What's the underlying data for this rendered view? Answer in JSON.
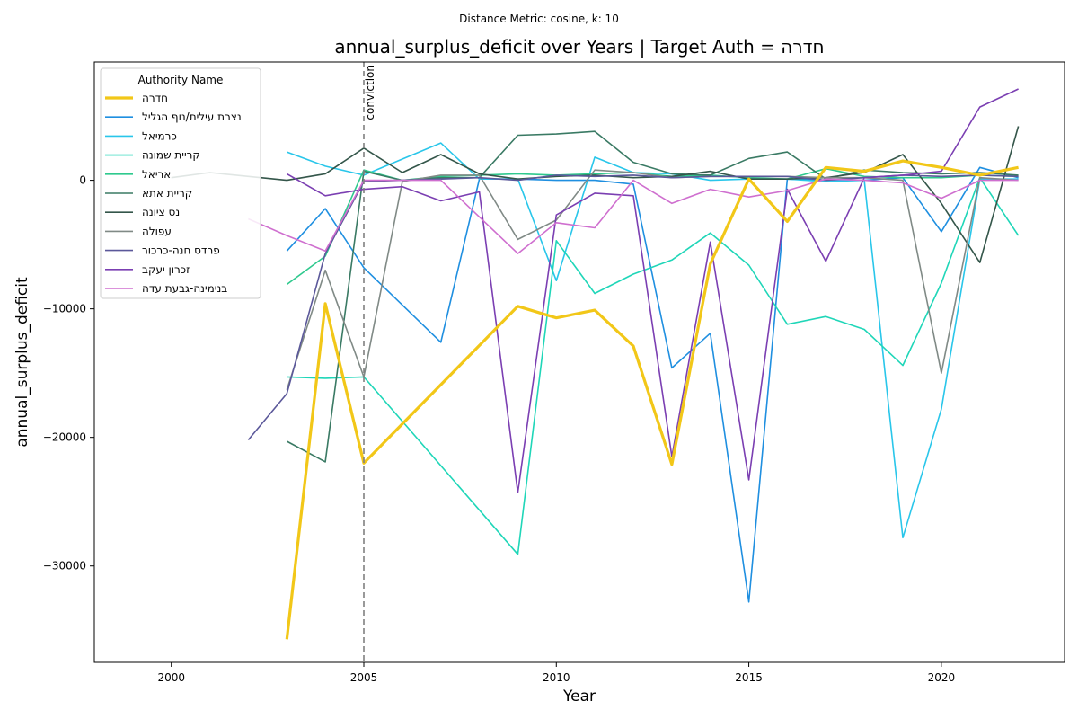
{
  "suptitle": "Distance Metric: cosine, k: 10",
  "chart_data": {
    "type": "line",
    "title": "annual_surplus_deficit over Years | Target Auth = חדרה",
    "xlabel": "Year",
    "ylabel": "annual_surplus_deficit",
    "xlim": [
      1998,
      2023.2
    ],
    "ylim": [
      -37500,
      9200
    ],
    "xticks": [
      2000,
      2005,
      2010,
      2015,
      2020
    ],
    "yticks": [
      -30000,
      -20000,
      -10000,
      0
    ],
    "grid": false,
    "legend": {
      "title": "Authority Name",
      "position": "top-left"
    },
    "vline": {
      "x": 2005,
      "label": "conviction",
      "color": "#808080"
    },
    "series": [
      {
        "name": "חדרה",
        "color": "#f2c718",
        "width": 3.2,
        "target": true,
        "points": [
          [
            2003,
            -35700
          ],
          [
            2004,
            -9600
          ],
          [
            2005,
            -22000
          ],
          [
            2009,
            -9800
          ],
          [
            2010,
            -10700
          ],
          [
            2011,
            -10100
          ],
          [
            2012,
            -12900
          ],
          [
            2013,
            -22100
          ],
          [
            2014,
            -6500
          ],
          [
            2015,
            100
          ],
          [
            2016,
            -3200
          ],
          [
            2017,
            1000
          ],
          [
            2018,
            700
          ],
          [
            2019,
            1500
          ],
          [
            2020,
            1000
          ],
          [
            2021,
            400
          ],
          [
            2022,
            1000
          ]
        ]
      },
      {
        "name": "נצרת עילית/נוף הגליל",
        "color": "#1f8fe0",
        "width": 1.6,
        "points": [
          [
            2003,
            -5500
          ],
          [
            2004,
            -2200
          ],
          [
            2005,
            -6800
          ],
          [
            2007,
            -12600
          ],
          [
            2008,
            100
          ],
          [
            2009,
            100
          ],
          [
            2010,
            0
          ],
          [
            2011,
            0
          ],
          [
            2012,
            -300
          ],
          [
            2013,
            -14600
          ],
          [
            2014,
            -11900
          ],
          [
            2015,
            -32800
          ],
          [
            2016,
            100
          ],
          [
            2017,
            0
          ],
          [
            2018,
            0
          ],
          [
            2019,
            200
          ],
          [
            2020,
            -4000
          ],
          [
            2021,
            1000
          ],
          [
            2022,
            200
          ]
        ]
      },
      {
        "name": "כרמיאל",
        "color": "#29c6ea",
        "width": 1.6,
        "points": [
          [
            2003,
            2200
          ],
          [
            2004,
            1100
          ],
          [
            2005,
            400
          ],
          [
            2007,
            2900
          ],
          [
            2008,
            100
          ],
          [
            2009,
            100
          ],
          [
            2010,
            -7800
          ],
          [
            2011,
            1800
          ],
          [
            2012,
            600
          ],
          [
            2013,
            500
          ],
          [
            2014,
            0
          ],
          [
            2015,
            100
          ],
          [
            2016,
            100
          ],
          [
            2017,
            -100
          ],
          [
            2018,
            0
          ],
          [
            2019,
            -27800
          ],
          [
            2020,
            -17800
          ],
          [
            2021,
            100
          ],
          [
            2022,
            100
          ]
        ]
      },
      {
        "name": "קריית שמונה",
        "color": "#1fd6b8",
        "width": 1.6,
        "points": [
          [
            2003,
            -15300
          ],
          [
            2004,
            -15400
          ],
          [
            2005,
            -15300
          ],
          [
            2009,
            -29100
          ],
          [
            2010,
            -4700
          ],
          [
            2011,
            -8800
          ],
          [
            2012,
            -7300
          ],
          [
            2013,
            -6200
          ],
          [
            2014,
            -4100
          ],
          [
            2015,
            -6600
          ],
          [
            2016,
            -11200
          ],
          [
            2017,
            -10600
          ],
          [
            2018,
            -11600
          ],
          [
            2019,
            -14400
          ],
          [
            2020,
            -8000
          ],
          [
            2021,
            200
          ],
          [
            2022,
            -4300
          ]
        ]
      },
      {
        "name": "אריאל",
        "color": "#2fc98e",
        "width": 1.6,
        "points": [
          [
            2003,
            -8100
          ],
          [
            2004,
            -5900
          ],
          [
            2005,
            800
          ],
          [
            2006,
            0
          ],
          [
            2007,
            300
          ],
          [
            2008,
            400
          ],
          [
            2009,
            500
          ],
          [
            2010,
            400
          ],
          [
            2011,
            500
          ],
          [
            2012,
            600
          ],
          [
            2013,
            300
          ],
          [
            2014,
            400
          ],
          [
            2015,
            200
          ],
          [
            2016,
            100
          ],
          [
            2017,
            900
          ],
          [
            2018,
            300
          ],
          [
            2019,
            200
          ],
          [
            2020,
            200
          ],
          [
            2021,
            400
          ],
          [
            2022,
            300
          ]
        ]
      },
      {
        "name": "קריית אתא",
        "color": "#3a7a64",
        "width": 1.6,
        "points": [
          [
            2003,
            -20300
          ],
          [
            2004,
            -21900
          ],
          [
            2005,
            700
          ],
          [
            2006,
            0
          ],
          [
            2007,
            200
          ],
          [
            2008,
            200
          ],
          [
            2009,
            3500
          ],
          [
            2010,
            3600
          ],
          [
            2011,
            3800
          ],
          [
            2012,
            1400
          ],
          [
            2013,
            500
          ],
          [
            2014,
            400
          ],
          [
            2015,
            1700
          ],
          [
            2016,
            2200
          ],
          [
            2017,
            100
          ],
          [
            2018,
            800
          ],
          [
            2019,
            600
          ],
          [
            2020,
            500
          ],
          [
            2021,
            600
          ],
          [
            2022,
            400
          ]
        ]
      },
      {
        "name": "נס ציונה",
        "color": "#34564a",
        "width": 1.6,
        "points": [
          [
            2000,
            200
          ],
          [
            2001,
            600
          ],
          [
            2003,
            0
          ],
          [
            2004,
            500
          ],
          [
            2005,
            2500
          ],
          [
            2006,
            600
          ],
          [
            2007,
            2000
          ],
          [
            2008,
            500
          ],
          [
            2009,
            100
          ],
          [
            2010,
            300
          ],
          [
            2011,
            400
          ],
          [
            2012,
            200
          ],
          [
            2013,
            300
          ],
          [
            2014,
            700
          ],
          [
            2015,
            100
          ],
          [
            2016,
            100
          ],
          [
            2017,
            200
          ],
          [
            2018,
            600
          ],
          [
            2019,
            2000
          ],
          [
            2020,
            -1800
          ],
          [
            2021,
            -6400
          ],
          [
            2022,
            4200
          ]
        ]
      },
      {
        "name": "עפולה",
        "color": "#808a86",
        "width": 1.6,
        "points": [
          [
            2003,
            -16300
          ],
          [
            2004,
            -7000
          ],
          [
            2005,
            -15300
          ],
          [
            2006,
            -100
          ],
          [
            2007,
            400
          ],
          [
            2008,
            400
          ],
          [
            2009,
            -4600
          ],
          [
            2010,
            -3100
          ],
          [
            2011,
            800
          ],
          [
            2012,
            600
          ],
          [
            2013,
            200
          ],
          [
            2014,
            300
          ],
          [
            2015,
            300
          ],
          [
            2016,
            300
          ],
          [
            2017,
            200
          ],
          [
            2018,
            200
          ],
          [
            2019,
            0
          ],
          [
            2020,
            -15000
          ],
          [
            2021,
            200
          ],
          [
            2022,
            0
          ]
        ]
      },
      {
        "name": "פרדס חנה-כרכור",
        "color": "#5b589a",
        "width": 1.6,
        "points": [
          [
            2002,
            -20200
          ],
          [
            2003,
            -16600
          ],
          [
            2004,
            -5700
          ],
          [
            2005,
            -100
          ],
          [
            2006,
            0
          ],
          [
            2007,
            100
          ],
          [
            2008,
            200
          ],
          [
            2009,
            0
          ],
          [
            2010,
            400
          ],
          [
            2011,
            300
          ],
          [
            2012,
            400
          ],
          [
            2013,
            200
          ],
          [
            2014,
            300
          ],
          [
            2015,
            300
          ],
          [
            2016,
            300
          ],
          [
            2017,
            0
          ],
          [
            2018,
            200
          ],
          [
            2019,
            400
          ],
          [
            2020,
            300
          ],
          [
            2021,
            400
          ],
          [
            2022,
            300
          ]
        ]
      },
      {
        "name": "זכרון יעקב",
        "color": "#7b3fb2",
        "width": 1.6,
        "points": [
          [
            2003,
            500
          ],
          [
            2004,
            -1200
          ],
          [
            2005,
            -700
          ],
          [
            2006,
            -500
          ],
          [
            2007,
            -1600
          ],
          [
            2008,
            -900
          ],
          [
            2009,
            -24300
          ],
          [
            2010,
            -2700
          ],
          [
            2011,
            -1000
          ],
          [
            2012,
            -1200
          ],
          [
            2013,
            -21500
          ],
          [
            2014,
            -4800
          ],
          [
            2015,
            -23300
          ],
          [
            2016,
            -700
          ],
          [
            2017,
            -6300
          ],
          [
            2018,
            200
          ],
          [
            2019,
            400
          ],
          [
            2020,
            700
          ],
          [
            2021,
            5700
          ],
          [
            2022,
            7100
          ]
        ]
      },
      {
        "name": "בנימינה-גבעת עדה",
        "color": "#cf6fcf",
        "width": 1.6,
        "points": [
          [
            2002,
            -3000
          ],
          [
            2003,
            -4300
          ],
          [
            2004,
            -5500
          ],
          [
            2005,
            0
          ],
          [
            2007,
            0
          ],
          [
            2009,
            -5700
          ],
          [
            2010,
            -3300
          ],
          [
            2011,
            -3700
          ],
          [
            2012,
            0
          ],
          [
            2013,
            -1800
          ],
          [
            2014,
            -700
          ],
          [
            2015,
            -1300
          ],
          [
            2016,
            -800
          ],
          [
            2017,
            100
          ],
          [
            2018,
            0
          ],
          [
            2019,
            -200
          ],
          [
            2020,
            -1400
          ],
          [
            2021,
            0
          ],
          [
            2022,
            0
          ]
        ]
      }
    ]
  }
}
